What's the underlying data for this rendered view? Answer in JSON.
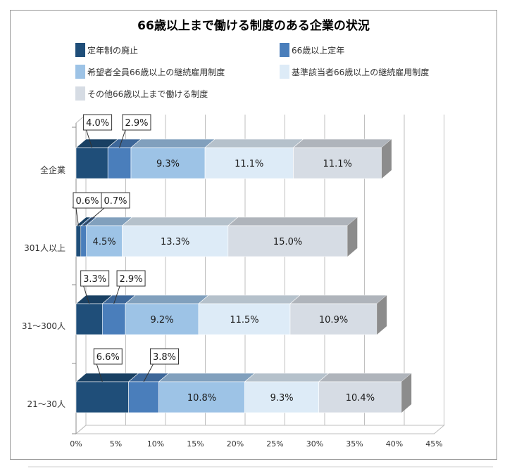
{
  "chart_data": {
    "type": "bar",
    "orientation": "horizontal",
    "stacked": true,
    "title": "66歳以上まで働ける制度のある企業の状況",
    "categories": [
      "全企業",
      "301人以上",
      "31～300人",
      "21～30人"
    ],
    "series": [
      {
        "name": "定年制の廃止",
        "values": [
          4.0,
          0.6,
          3.3,
          6.6
        ],
        "labels": [
          "4.0%",
          "0.6%",
          "3.3%",
          "6.6%"
        ],
        "color": "#1f4e79"
      },
      {
        "name": "66歳以上定年",
        "values": [
          2.9,
          0.7,
          2.9,
          3.8
        ],
        "labels": [
          "2.9%",
          "0.7%",
          "2.9%",
          "3.8%"
        ],
        "color": "#4a7ebb"
      },
      {
        "name": "希望者全員66歳以上の継続雇用制度",
        "values": [
          9.3,
          4.5,
          9.2,
          10.8
        ],
        "labels": [
          "9.3%",
          "4.5%",
          "9.2%",
          "10.8%"
        ],
        "color": "#9dc3e6"
      },
      {
        "name": "基準該当者66歳以上の継続雇用制度",
        "values": [
          11.1,
          13.3,
          11.5,
          9.3
        ],
        "labels": [
          "11.1%",
          "13.3%",
          "11.5%",
          "9.3%"
        ],
        "color": "#ddebf7"
      },
      {
        "name": "その他66歳以上まで働ける制度",
        "values": [
          11.1,
          15.0,
          10.9,
          10.4
        ],
        "labels": [
          "11.1%",
          "15.0%",
          "10.9%",
          "10.4%"
        ],
        "color": "#d6dce4"
      }
    ],
    "xlim": [
      0,
      45
    ],
    "x_ticks": [
      "0%",
      "5%",
      "10%",
      "15%",
      "20%",
      "25%",
      "30%",
      "35%",
      "40%",
      "45%"
    ],
    "gridlines": true,
    "legend_position": "top",
    "style": "3d"
  },
  "colors": {
    "side_shade": "#8c8c8c",
    "grid": "#bfbfbf"
  }
}
